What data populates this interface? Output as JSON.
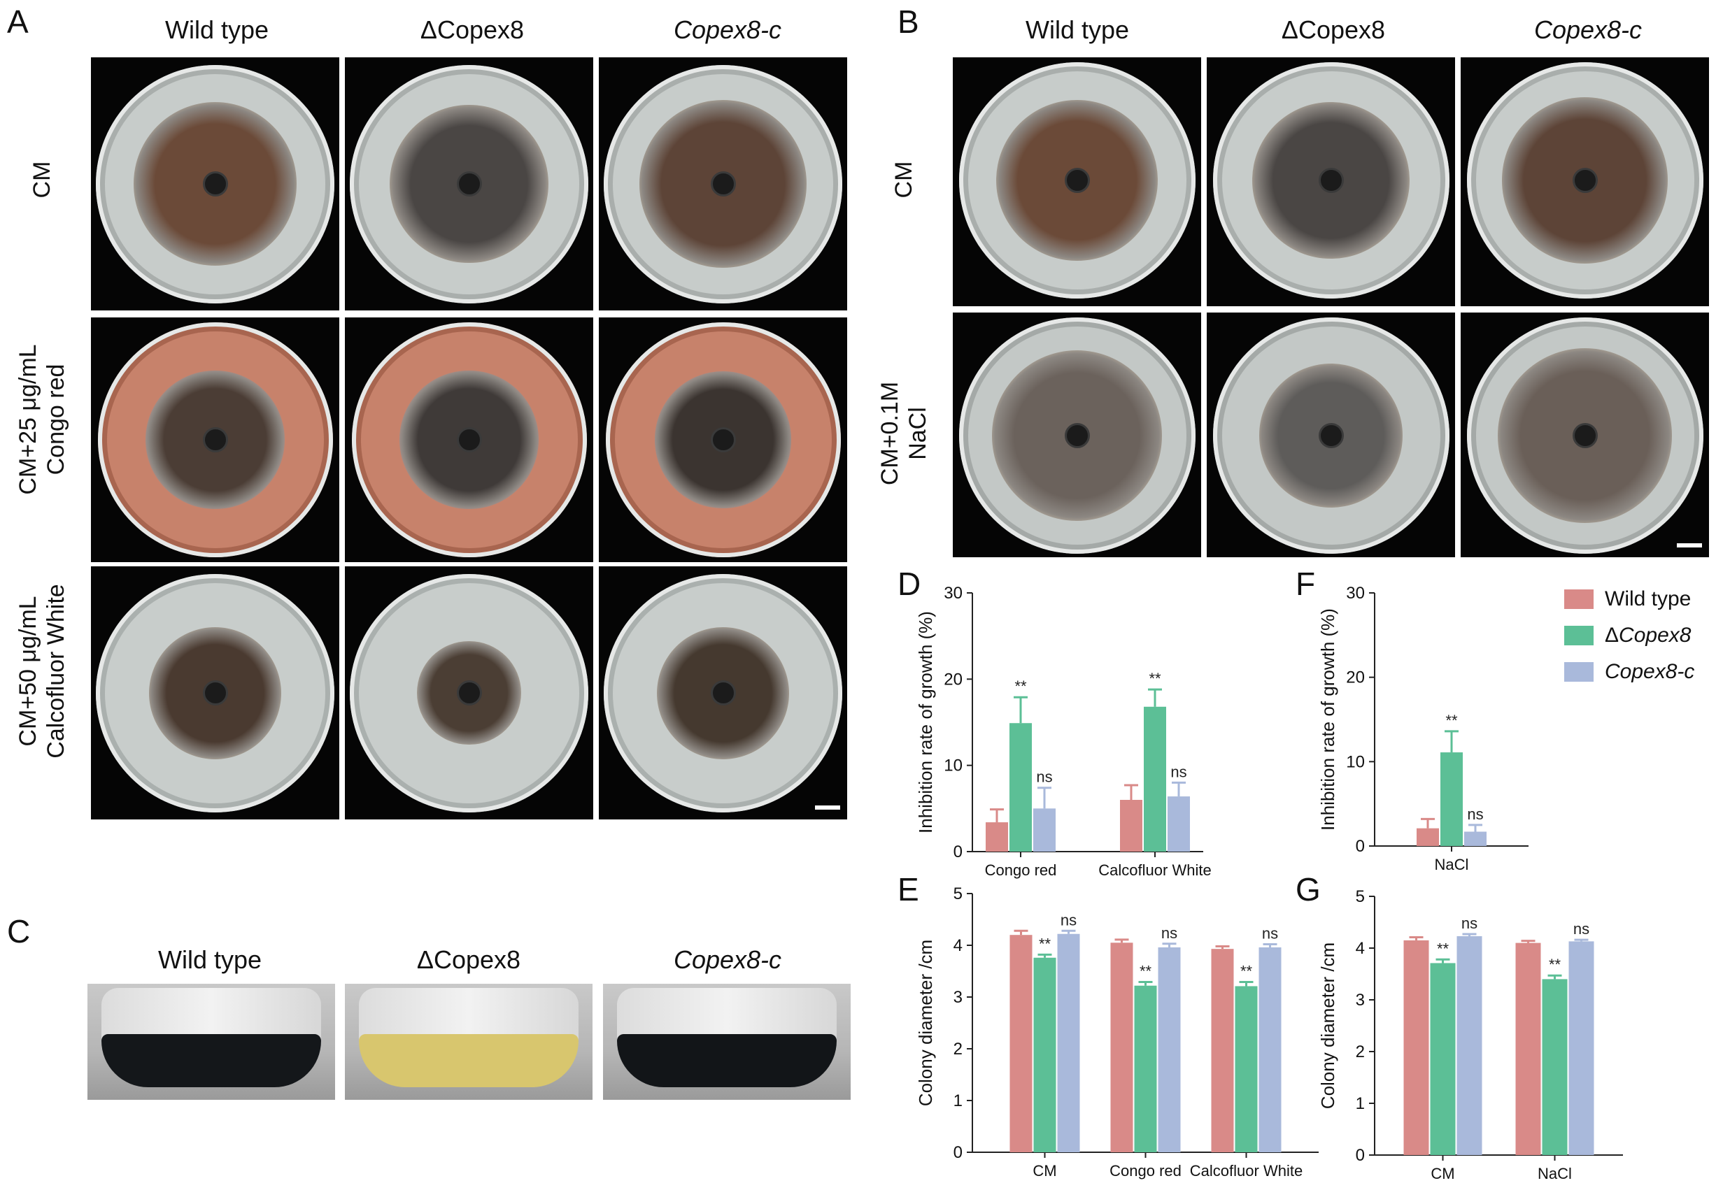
{
  "panels": {
    "A": {
      "letter": "A",
      "columns": [
        {
          "label": "Wild type",
          "italic": false
        },
        {
          "label": "ΔCopex8",
          "italic": false
        },
        {
          "label": "Copex8-c",
          "italic": true
        }
      ],
      "rows": [
        {
          "label_lines": [
            "CM"
          ],
          "medium": "plain"
        },
        {
          "label_lines": [
            "CM+25 μg/mL",
            "Congo red"
          ],
          "medium": "congo"
        },
        {
          "label_lines": [
            "CM+50 μg/mL",
            "Calcofluor White"
          ],
          "medium": "calco"
        }
      ]
    },
    "B": {
      "letter": "B",
      "columns": [
        {
          "label": "Wild type",
          "italic": false
        },
        {
          "label": "ΔCopex8",
          "italic": false
        },
        {
          "label": "Copex8-c",
          "italic": true
        }
      ],
      "rows": [
        {
          "label_lines": [
            "CM"
          ],
          "medium": "plain"
        },
        {
          "label_lines": [
            "CM+0.1M",
            "NaCl"
          ],
          "medium": "nacl"
        }
      ]
    },
    "C": {
      "letter": "C",
      "columns": [
        {
          "label": "Wild type",
          "italic": false,
          "liquid": "#14171a"
        },
        {
          "label": "ΔCopex8",
          "italic": false,
          "liquid": "#d8c66e"
        },
        {
          "label": "Copex8-c",
          "italic": true,
          "liquid": "#121518"
        }
      ]
    },
    "D": {
      "letter": "D"
    },
    "E": {
      "letter": "E"
    },
    "F": {
      "letter": "F"
    },
    "G": {
      "letter": "G"
    }
  },
  "legend": [
    {
      "prefix": "",
      "name": "Wild type",
      "italic": false,
      "color": "#d98a88"
    },
    {
      "prefix": "Δ",
      "name": "Copex8",
      "italic": true,
      "color": "#5cbf96"
    },
    {
      "prefix": "",
      "name": "Copex8-c",
      "italic": true,
      "color": "#a9b9db"
    }
  ],
  "colors": {
    "wild_type": "#d98a88",
    "delta": "#5cbf96",
    "complement": "#a9b9db"
  },
  "chart_data": [
    {
      "panel": "D",
      "type": "bar",
      "ylabel": "Inhibition rate of growth (%)",
      "ylim": [
        0,
        30
      ],
      "yticks": [
        0,
        10,
        20,
        30
      ],
      "categories": [
        "Congo red",
        "Calcofluor White"
      ],
      "series": [
        {
          "name": "Wild type",
          "values": [
            3.4,
            6.0
          ],
          "errors": [
            1.5,
            1.7
          ],
          "sig": [
            "",
            ""
          ]
        },
        {
          "name": "ΔCopex8",
          "values": [
            14.9,
            16.8
          ],
          "errors": [
            3.0,
            2.0
          ],
          "sig": [
            "**",
            "**"
          ]
        },
        {
          "name": "Copex8-c",
          "values": [
            5.0,
            6.4
          ],
          "errors": [
            2.4,
            1.6
          ],
          "sig": [
            "ns",
            "ns"
          ]
        }
      ]
    },
    {
      "panel": "E",
      "type": "bar",
      "ylabel": "Colony diameter /cm",
      "ylim": [
        0,
        5
      ],
      "yticks": [
        0,
        1,
        2,
        3,
        4,
        5
      ],
      "categories": [
        "CM",
        "Congo red",
        "Calcofluor White"
      ],
      "series": [
        {
          "name": "Wild type",
          "values": [
            4.2,
            4.05,
            3.93
          ],
          "errors": [
            0.08,
            0.06,
            0.05
          ],
          "sig": [
            "",
            "",
            ""
          ]
        },
        {
          "name": "ΔCopex8",
          "values": [
            3.76,
            3.22,
            3.21
          ],
          "errors": [
            0.06,
            0.07,
            0.08
          ],
          "sig": [
            "**",
            "**",
            "**"
          ]
        },
        {
          "name": "Copex8-c",
          "values": [
            4.22,
            3.96,
            3.96
          ],
          "errors": [
            0.06,
            0.07,
            0.06
          ],
          "sig": [
            "ns",
            "ns",
            "ns"
          ]
        }
      ]
    },
    {
      "panel": "F",
      "type": "bar",
      "ylabel": "Inhibition rate of growth (%)",
      "ylim": [
        0,
        30
      ],
      "yticks": [
        0,
        10,
        20,
        30
      ],
      "categories": [
        "NaCl"
      ],
      "series": [
        {
          "name": "Wild type",
          "values": [
            2.1
          ],
          "errors": [
            1.1
          ],
          "sig": [
            ""
          ]
        },
        {
          "name": "ΔCopex8",
          "values": [
            11.1
          ],
          "errors": [
            2.5
          ],
          "sig": [
            "**"
          ]
        },
        {
          "name": "Copex8-c",
          "values": [
            1.7
          ],
          "errors": [
            0.8
          ],
          "sig": [
            "ns"
          ]
        }
      ]
    },
    {
      "panel": "G",
      "type": "bar",
      "ylabel": "Colony diameter /cm",
      "ylim": [
        0,
        5
      ],
      "yticks": [
        0,
        1,
        2,
        3,
        4,
        5
      ],
      "categories": [
        "CM",
        "NaCl"
      ],
      "series": [
        {
          "name": "Wild type",
          "values": [
            4.15,
            4.1
          ],
          "errors": [
            0.06,
            0.04
          ],
          "sig": [
            "",
            ""
          ]
        },
        {
          "name": "ΔCopex8",
          "values": [
            3.71,
            3.4
          ],
          "errors": [
            0.07,
            0.07
          ],
          "sig": [
            "**",
            "**"
          ]
        },
        {
          "name": "Copex8-c",
          "values": [
            4.23,
            4.13
          ],
          "errors": [
            0.04,
            0.03
          ],
          "sig": [
            "ns",
            "ns"
          ]
        }
      ]
    }
  ]
}
